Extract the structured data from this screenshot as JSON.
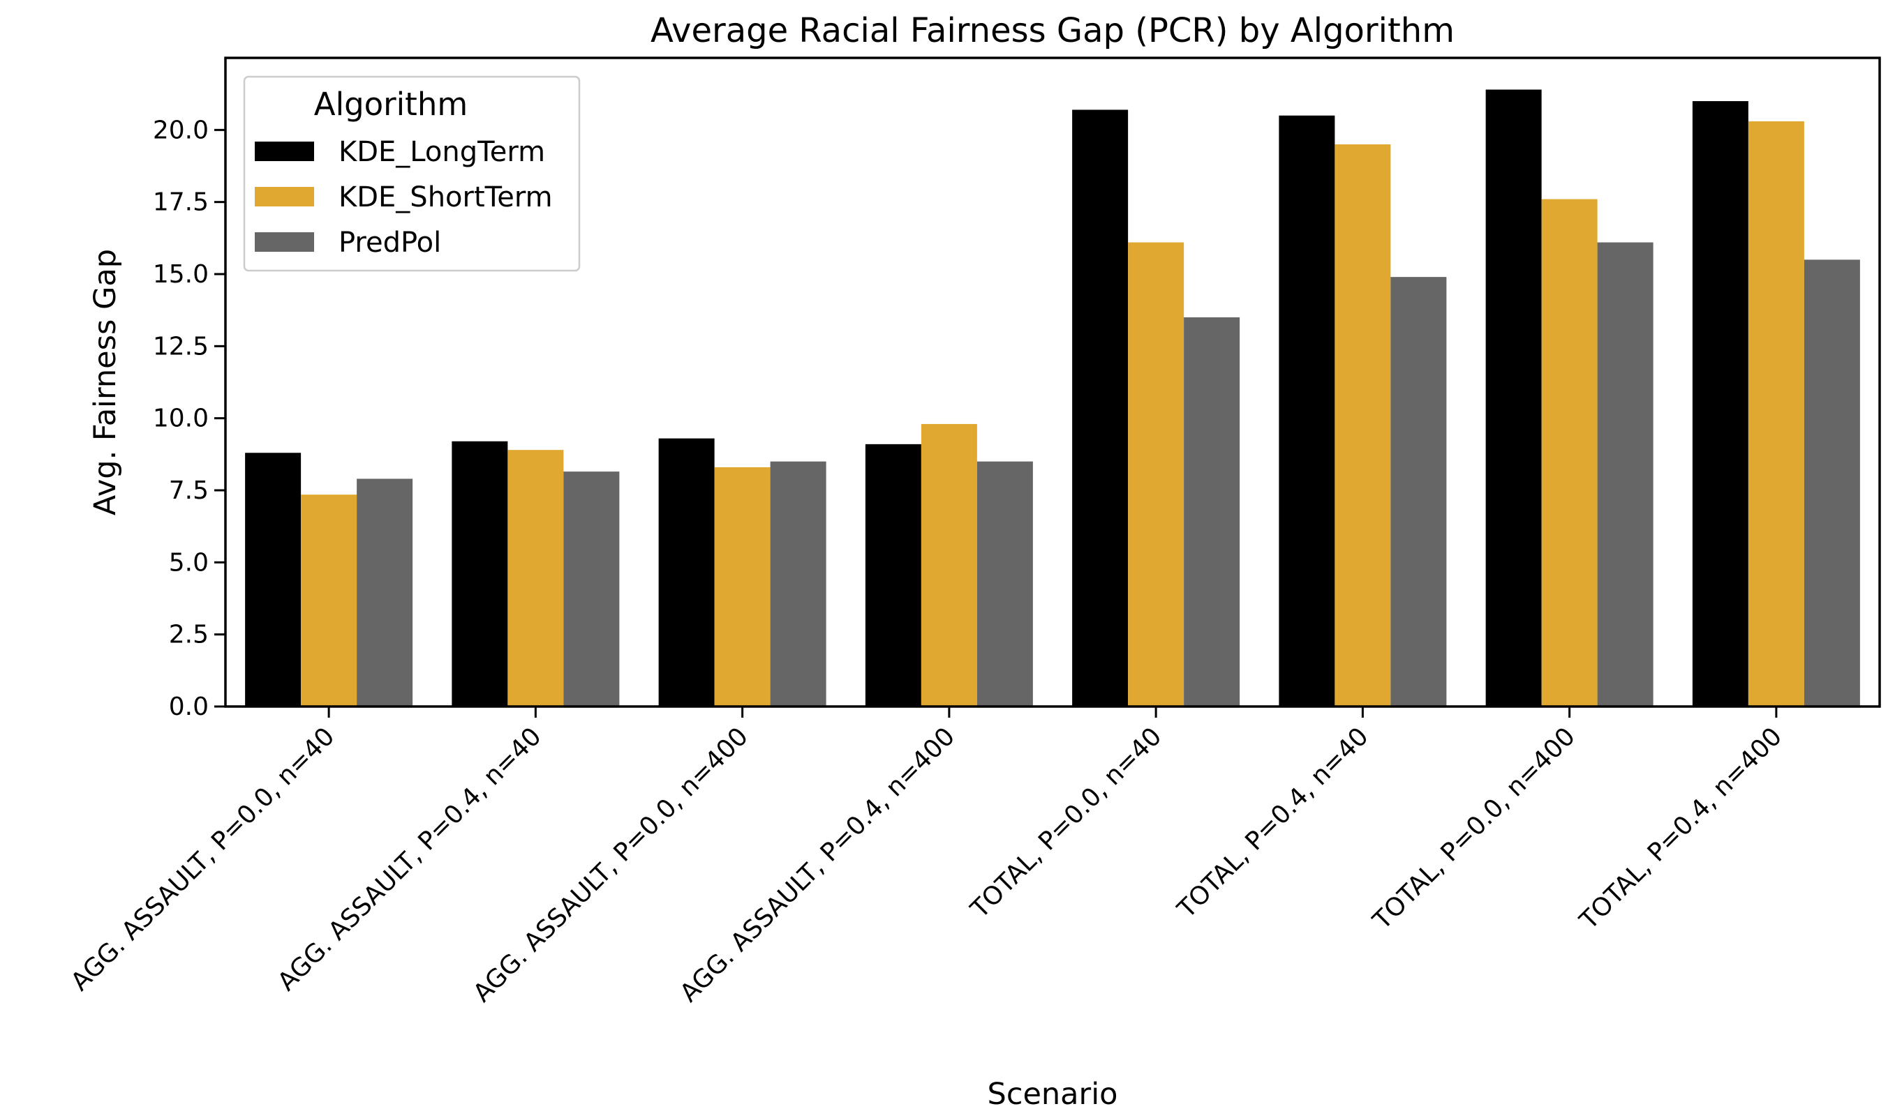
{
  "chart_data": {
    "type": "bar",
    "title": "Average  Racial Fairness Gap (PCR) by Algorithm",
    "xlabel": "Scenario",
    "ylabel": "Avg. Fairness Gap",
    "ylim": [
      0,
      22.5
    ],
    "yticks": [
      "0.0",
      "2.5",
      "5.0",
      "7.5",
      "10.0",
      "12.5",
      "15.0",
      "17.5",
      "20.0"
    ],
    "grid": false,
    "legend": {
      "title": "Algorithm",
      "placement": "top-left"
    },
    "categories": [
      "AGG. ASSAULT, P=0.0, n=40",
      "AGG. ASSAULT, P=0.4, n=40",
      "AGG. ASSAULT, P=0.0, n=400",
      "AGG. ASSAULT, P=0.4, n=400",
      "TOTAL, P=0.0, n=40",
      "TOTAL, P=0.4, n=40",
      "TOTAL, P=0.0, n=400",
      "TOTAL, P=0.4, n=400"
    ],
    "series": [
      {
        "name": "KDE_LongTerm",
        "color": "#000000",
        "values": [
          8.8,
          9.2,
          9.3,
          9.1,
          20.7,
          20.5,
          21.4,
          21.0
        ]
      },
      {
        "name": "KDE_ShortTerm",
        "color": "#e0a830",
        "values": [
          7.35,
          8.9,
          8.3,
          9.8,
          16.1,
          19.5,
          17.6,
          20.3
        ]
      },
      {
        "name": "PredPol",
        "color": "#666666",
        "values": [
          7.9,
          8.15,
          8.5,
          8.5,
          13.5,
          14.9,
          16.1,
          15.5
        ]
      }
    ]
  }
}
